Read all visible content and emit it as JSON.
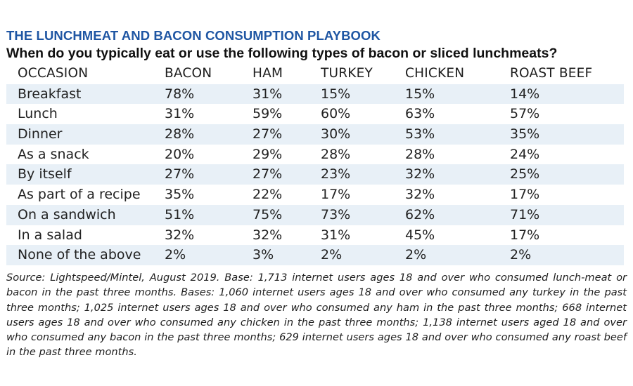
{
  "title": "THE LUNCHMEAT AND BACON CONSUMPTION PLAYBOOK",
  "subtitle": "When do you typically eat or use the following types of bacon or sliced lunchmeats?",
  "source": "Source: Lightspeed/Mintel, August 2019. Base: 1,713 internet users ages 18 and over who consumed lunch-meat or bacon in the past three months. Bases: 1,060 internet users ages 18 and over who consumed any turkey in the past three months; 1,025 internet users ages 18 and over who consumed any ham in the past three months; 668 internet users ages 18 and over who consumed any chicken in the past three months; 1,138 internet users aged 18 and over who consumed any bacon in the past three months; 629 internet users ages 18 and over who consumed any roast beef in the past three months.",
  "colors": {
    "title": "#1f56a3",
    "row_shade": "#e8f0f7",
    "text": "#222222"
  },
  "chart_data": {
    "type": "table",
    "title": "THE LUNCHMEAT AND BACON CONSUMPTION PLAYBOOK",
    "subtitle": "When do you typically eat or use the following types of bacon or sliced lunchmeats?",
    "columns": [
      "OCCASION",
      "BACON",
      "HAM",
      "TURKEY",
      "CHICKEN",
      "ROAST BEEF"
    ],
    "rows": [
      [
        "Breakfast",
        "78%",
        "31%",
        "15%",
        "15%",
        "14%"
      ],
      [
        "Lunch",
        "31%",
        "59%",
        "60%",
        "63%",
        "57%"
      ],
      [
        "Dinner",
        "28%",
        "27%",
        "30%",
        "53%",
        "35%"
      ],
      [
        "As a snack",
        "20%",
        "29%",
        "28%",
        "28%",
        "24%"
      ],
      [
        "By itself",
        "27%",
        "27%",
        "23%",
        "32%",
        "25%"
      ],
      [
        "As part of a recipe",
        "35%",
        "22%",
        "17%",
        "32%",
        "17%"
      ],
      [
        "On a sandwich",
        "51%",
        "75%",
        "73%",
        "62%",
        "71%"
      ],
      [
        "In a salad",
        "32%",
        "32%",
        "31%",
        "45%",
        "17%"
      ],
      [
        "None of the above",
        "2%",
        "3%",
        "2%",
        "2%",
        "2%"
      ]
    ]
  }
}
